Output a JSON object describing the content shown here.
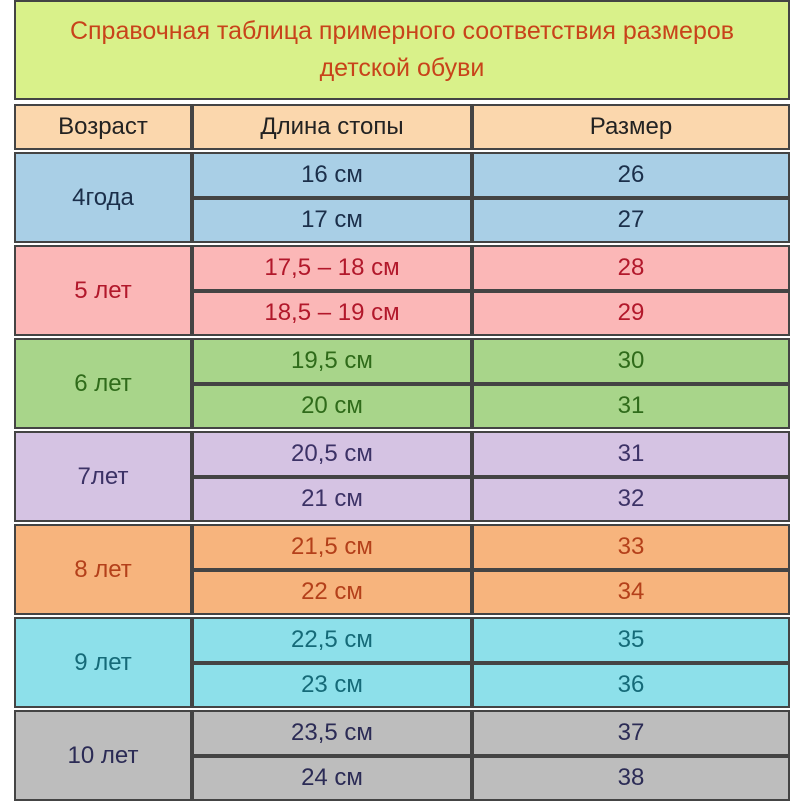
{
  "title": {
    "line1": "Справочная таблица примерного соответствия размеров",
    "line2": "детской обуви"
  },
  "header": {
    "age": "Возраст",
    "foot_length": "Длина стопы",
    "size": "Размер"
  },
  "groups": [
    {
      "age": "4года",
      "bg": "#a9cfe6",
      "color": "#1b2f4a",
      "rows": [
        {
          "length": "16 см",
          "size": "26"
        },
        {
          "length": "17 см",
          "size": "27"
        }
      ]
    },
    {
      "age": "5 лет",
      "bg": "#fbb7b7",
      "color": "#b2182b",
      "rows": [
        {
          "length": "17,5 – 18 см",
          "size": "28"
        },
        {
          "length": "18,5 – 19 см",
          "size": "29"
        }
      ]
    },
    {
      "age": "6 лет",
      "bg": "#a8d58a",
      "color": "#2f6b1a",
      "rows": [
        {
          "length": "19,5 см",
          "size": "30"
        },
        {
          "length": "20 см",
          "size": "31"
        }
      ]
    },
    {
      "age": "7лет",
      "bg": "#d5c3e3",
      "color": "#3c3266",
      "rows": [
        {
          "length": "20,5 см",
          "size": "31"
        },
        {
          "length": "21 см",
          "size": "32"
        }
      ]
    },
    {
      "age": "8 лет",
      "bg": "#f7b47d",
      "color": "#b4401a",
      "rows": [
        {
          "length": "21,5 см",
          "size": "33"
        },
        {
          "length": "22 см",
          "size": "34"
        }
      ]
    },
    {
      "age": "9 лет",
      "bg": "#8de0ea",
      "color": "#156a78",
      "rows": [
        {
          "length": "22,5 см",
          "size": "35"
        },
        {
          "length": "23 см",
          "size": "36"
        }
      ]
    },
    {
      "age": "10 лет",
      "bg": "#bdbdbd",
      "color": "#2b2b55",
      "rows": [
        {
          "length": "23,5 см",
          "size": "37"
        },
        {
          "length": "24 см",
          "size": "38"
        }
      ]
    }
  ]
}
